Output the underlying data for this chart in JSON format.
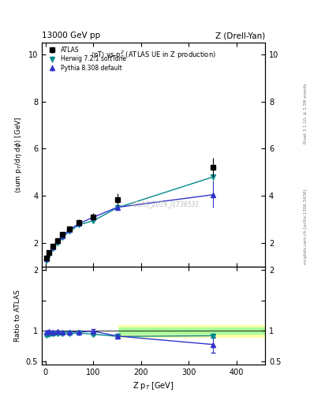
{
  "title_left": "13000 GeV pp",
  "title_right": "Z (Drell-Yan)",
  "plot_title": "<pT> vs p$_T^Z$ (ATLAS UE in Z production)",
  "ylabel_main": "<sum p_T/dη dφ> [GeV]",
  "ylabel_ratio": "Ratio to ATLAS",
  "xlabel": "Z p$_T$ [GeV]",
  "right_label_top": "Rivet 3.1.10, ≥ 3.3M events",
  "right_label_bot": "mcplots.cern.ch [arXiv:1306.3436]",
  "watermark": "ATLAS_2019_I1736531",
  "atlas_x": [
    2.5,
    7.5,
    15,
    25,
    35,
    50,
    70,
    100,
    150,
    350
  ],
  "atlas_y": [
    1.38,
    1.62,
    1.88,
    2.12,
    2.38,
    2.62,
    2.88,
    3.12,
    3.85,
    5.22
  ],
  "atlas_yerr": [
    0.05,
    0.06,
    0.07,
    0.08,
    0.09,
    0.1,
    0.12,
    0.15,
    0.25,
    0.4
  ],
  "herwig_x": [
    2.5,
    7.5,
    15,
    25,
    35,
    50,
    70,
    100,
    150,
    350
  ],
  "herwig_y": [
    1.28,
    1.52,
    1.78,
    2.02,
    2.25,
    2.5,
    2.78,
    2.95,
    3.5,
    4.8
  ],
  "herwig_yerr": [
    0.02,
    0.02,
    0.03,
    0.03,
    0.03,
    0.04,
    0.05,
    0.06,
    0.09,
    0.18
  ],
  "pythia_x": [
    2.5,
    7.5,
    15,
    25,
    35,
    50,
    70,
    100,
    150,
    350
  ],
  "pythia_y": [
    1.35,
    1.6,
    1.85,
    2.1,
    2.32,
    2.57,
    2.83,
    3.1,
    3.52,
    4.05
  ],
  "pythia_yerr": [
    0.03,
    0.03,
    0.04,
    0.04,
    0.05,
    0.06,
    0.07,
    0.1,
    0.15,
    0.55
  ],
  "herwig_ratio_y": [
    0.928,
    0.938,
    0.947,
    0.953,
    0.947,
    0.954,
    0.965,
    0.945,
    0.91,
    0.92
  ],
  "herwig_ratio_yerr": [
    0.014,
    0.012,
    0.016,
    0.014,
    0.013,
    0.015,
    0.017,
    0.019,
    0.024,
    0.035
  ],
  "pythia_ratio_y": [
    0.978,
    0.988,
    0.984,
    0.991,
    0.975,
    0.981,
    0.982,
    0.994,
    0.915,
    0.777
  ],
  "pythia_ratio_yerr": [
    0.022,
    0.018,
    0.021,
    0.019,
    0.021,
    0.023,
    0.024,
    0.032,
    0.04,
    0.13
  ],
  "atlas_color": "#000000",
  "herwig_color": "#008B8B",
  "pythia_color": "#3333cc",
  "band_yellow": [
    0.9,
    1.1
  ],
  "band_green": [
    0.95,
    1.05
  ],
  "band_yellow_color": "#ffffaa",
  "band_green_color": "#aaff99",
  "band_xstart": 150,
  "main_ylim": [
    1.0,
    10.5
  ],
  "ratio_ylim": [
    0.45,
    2.05
  ],
  "xlim": [
    -8,
    460
  ],
  "main_yticks": [
    2,
    4,
    6,
    8,
    10
  ],
  "ratio_yticks": [
    0.5,
    1.0,
    1.5,
    2.0
  ],
  "xticks": [
    0,
    100,
    200,
    300,
    400
  ]
}
